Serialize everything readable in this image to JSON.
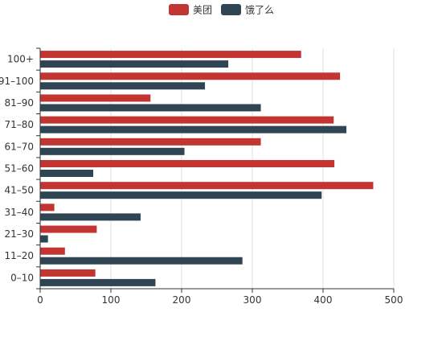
{
  "chart_data": {
    "type": "bar",
    "orientation": "horizontal",
    "categories": [
      "0–10",
      "11–20",
      "21–30",
      "31–40",
      "41–50",
      "51–60",
      "61–70",
      "71–80",
      "81–90",
      "91–100",
      "100+"
    ],
    "series": [
      {
        "name": "美团",
        "color": "#c23531",
        "values": [
          78,
          35,
          80,
          20,
          471,
          416,
          312,
          415,
          156,
          424,
          369
        ]
      },
      {
        "name": "饿了么",
        "color": "#2f4554",
        "values": [
          163,
          286,
          11,
          142,
          398,
          75,
          204,
          433,
          312,
          233,
          266
        ]
      }
    ],
    "x_ticks": [
      0,
      100,
      200,
      300,
      400,
      500
    ],
    "xlim": [
      0,
      500
    ],
    "grid": true,
    "legend": "top-center"
  }
}
